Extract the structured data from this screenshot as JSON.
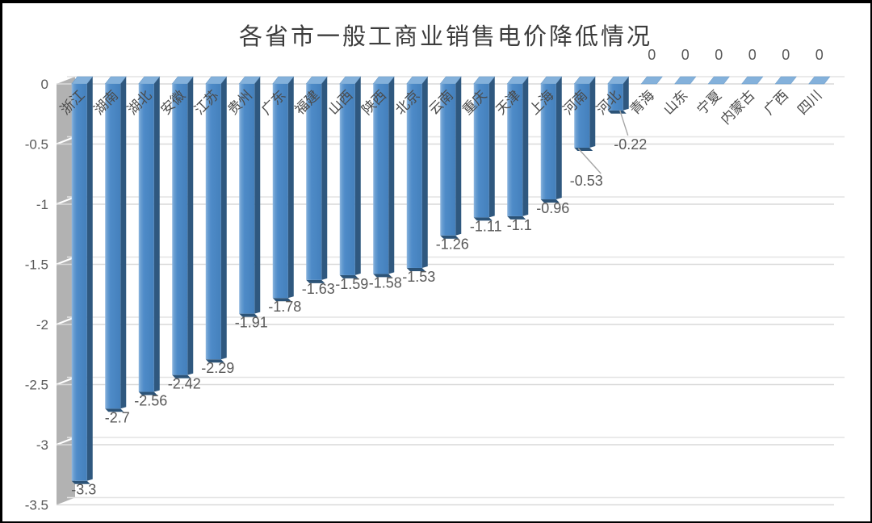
{
  "chart_data": {
    "type": "bar",
    "title": "各省市一般工商业销售电价降低情况",
    "categories": [
      "浙江",
      "湖南",
      "湖北",
      "安徽",
      "江苏",
      "贵州",
      "广东",
      "福建",
      "山西",
      "陕西",
      "北京",
      "云南",
      "重庆",
      "天津",
      "上海",
      "河南",
      "河北",
      "青海",
      "山东",
      "宁夏",
      "内蒙古",
      "广西",
      "四川"
    ],
    "values": [
      -3.3,
      -2.7,
      -2.56,
      -2.42,
      -2.29,
      -1.91,
      -1.78,
      -1.63,
      -1.59,
      -1.58,
      -1.53,
      -1.26,
      -1.11,
      -1.1,
      -0.96,
      -0.53,
      -0.22,
      0,
      0,
      0,
      0,
      0,
      0
    ],
    "data_labels": [
      "-3.3",
      "-2.7",
      "-2.56",
      "-2.42",
      "-2.29",
      "-1.91",
      "-1.78",
      "-1.63",
      "-1.59",
      "-1.58",
      "-1.53",
      "-1.26",
      "-1.11",
      "-1.1",
      "-0.96",
      "-0.53",
      "-0.22",
      "0",
      "0",
      "0",
      "0",
      "0",
      "0"
    ],
    "xlabel": "",
    "ylabel": "",
    "y_ticks": [
      "0",
      "-0.5",
      "-1",
      "-1.5",
      "-2",
      "-2.5",
      "-3",
      "-3.5"
    ],
    "ylim": [
      -3.5,
      0
    ],
    "grid": true,
    "legend": "none",
    "style": "3d-bar",
    "colors": {
      "bar_main": "#4a86c2",
      "bar_light": "#8db6df",
      "bar_dark": "#2f587f",
      "bar_lip": "#2c5377",
      "bar_cap": "#84b1db",
      "wall": "#b2b2b2",
      "gridline_front": "#d9d9d9",
      "gridline_back": "#e4e4e4",
      "leader_line": "#a6a6a6",
      "title_text": "#3d3d3d",
      "label_text": "#595959"
    }
  }
}
